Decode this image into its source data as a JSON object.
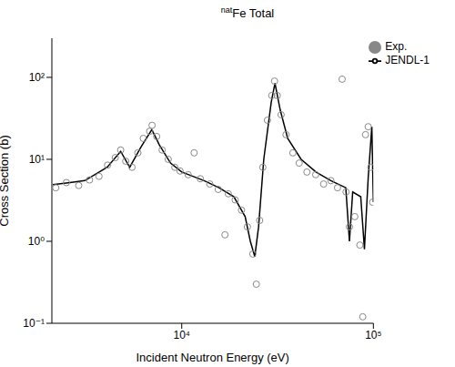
{
  "chart_data": {
    "type": "line",
    "title": "natFe Total",
    "x_label": "Incident Neutron Energy (eV)",
    "y_label": "Cross Section (b)",
    "log": true,
    "grid": false,
    "legend": "top-right",
    "xlim": [
      2100,
      100000
    ],
    "ylim": [
      0.1,
      300
    ],
    "xticks": [
      {
        "value": 10000,
        "label": "10⁴"
      },
      {
        "value": 100000,
        "label": "10⁵"
      }
    ],
    "yticks": [
      {
        "value": 0.1,
        "label": "10⁻¹"
      },
      {
        "value": 1,
        "label": "10⁰"
      },
      {
        "value": 10,
        "label": "10¹"
      },
      {
        "value": 100,
        "label": "10²"
      }
    ],
    "series": [
      {
        "name": "JENDL-1",
        "color": "#000000",
        "type": "line",
        "line_style": "solid",
        "x": [
          2125,
          2610,
          3120,
          4080,
          4800,
          5350,
          6110,
          6980,
          7640,
          8740,
          10000,
          13080,
          15650,
          18710,
          21420,
          22800,
          24050,
          25170,
          26790,
          29310,
          30650,
          32650,
          35710,
          41970,
          50160,
          59990,
          71780,
          75000,
          78000,
          85910,
          89800,
          93970,
          98160,
          100000
        ],
        "values": [
          4.9,
          5.2,
          5.5,
          8,
          12.5,
          8,
          14,
          23,
          15,
          9,
          7,
          5.5,
          4.5,
          3.5,
          2,
          1,
          0.65,
          1.5,
          10,
          50,
          85,
          40,
          18,
          10,
          7,
          5.5,
          4.5,
          1.0,
          4,
          3.5,
          0.8,
          6,
          25,
          3
        ]
      },
      {
        "name": "Exp.",
        "color": "#888888",
        "type": "scatter",
        "marker": "circle",
        "x": [
          2200,
          2500,
          2900,
          3300,
          3700,
          4100,
          4500,
          4800,
          5100,
          5500,
          5900,
          6300,
          6800,
          7000,
          7400,
          7900,
          8500,
          9200,
          9800,
          10800,
          11600,
          12500,
          14000,
          15500,
          16800,
          17500,
          19000,
          20500,
          22000,
          23500,
          24500,
          25500,
          26500,
          28000,
          29500,
          30500,
          31500,
          33000,
          35000,
          38000,
          41000,
          45000,
          50000,
          55000,
          60000,
          65000,
          68700,
          72000,
          75000,
          80000,
          85000,
          88000,
          91000,
          94000,
          97000,
          99000
        ],
        "values": [
          4.5,
          5.2,
          4.8,
          5.6,
          6.2,
          8.5,
          10.5,
          13,
          9.5,
          8,
          12,
          18,
          22,
          26,
          19,
          13,
          10,
          8,
          7.2,
          6.5,
          12,
          5.8,
          5,
          4.3,
          1.2,
          3.8,
          3.2,
          2.4,
          1.5,
          0.7,
          0.3,
          1.8,
          8,
          30,
          60,
          90,
          60,
          35,
          20,
          12,
          9,
          7,
          6.5,
          5,
          5.5,
          4.5,
          95,
          4,
          1.5,
          2,
          0.9,
          0.12,
          20,
          25,
          8,
          3
        ]
      }
    ]
  }
}
